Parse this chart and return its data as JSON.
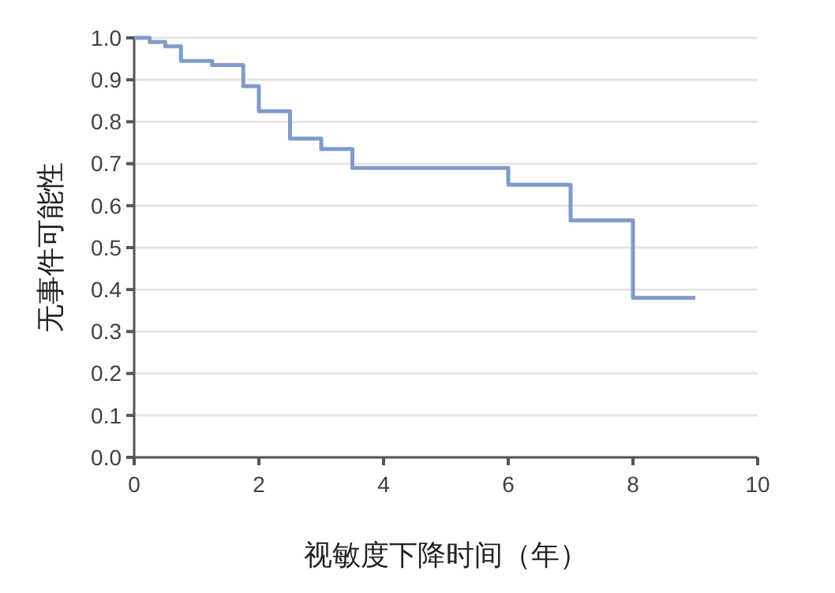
{
  "chart_data": {
    "type": "step",
    "xlabel": "视敏度下降时间（年）",
    "ylabel": "无事件可能性",
    "series": [
      {
        "color": "#7f9bc9",
        "x": [
          0,
          0.25,
          0.5,
          0.75,
          1.25,
          1.75,
          2,
          2.5,
          3,
          3.5,
          6,
          7,
          8,
          9
        ],
        "values": [
          1,
          0.99,
          0.98,
          0.945,
          0.935,
          0.885,
          0.825,
          0.76,
          0.735,
          0.69,
          0.65,
          0.565,
          0.38,
          0.38
        ]
      }
    ],
    "xlim": [
      0,
      10
    ],
    "xticks": [
      0,
      2,
      4,
      6,
      8,
      10
    ],
    "ylim": [
      0,
      1
    ],
    "yticks": [
      {
        "value": 0,
        "label": "0.0"
      },
      0.1,
      0.2,
      0.3,
      0.4,
      0.5,
      0.6,
      0.7,
      0.8,
      0.9,
      {
        "value": 1,
        "label": "1.0"
      }
    ],
    "grid": "y",
    "marker": "none",
    "line_style": "solid"
  }
}
